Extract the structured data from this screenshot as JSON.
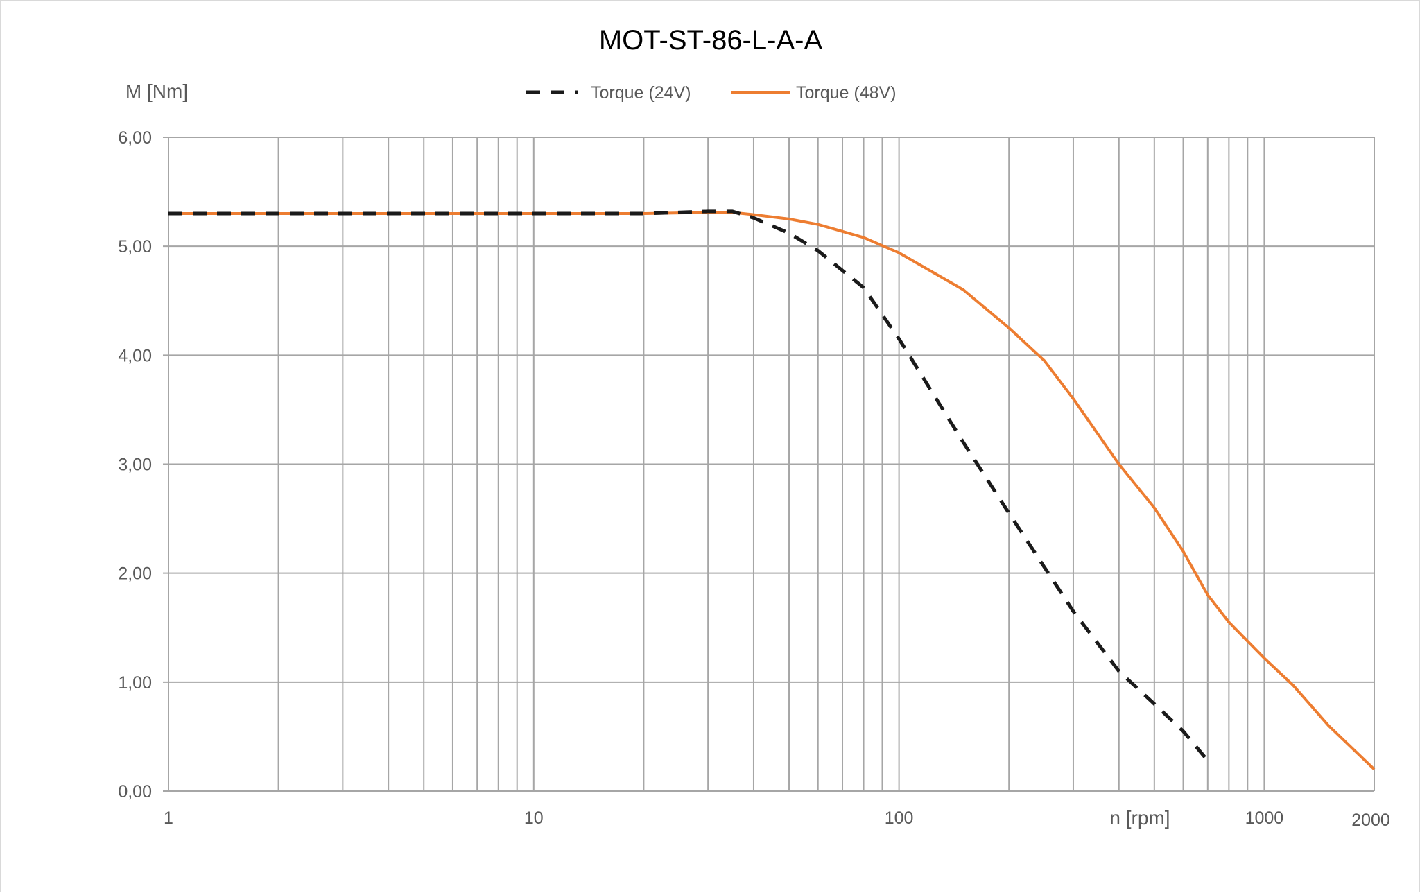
{
  "chart_data": {
    "type": "line",
    "title": "MOT-ST-86-L-A-A",
    "ylabel": "M [Nm]",
    "xlabel": "n [rpm]",
    "x_scale": "log",
    "xlim": [
      1,
      2000
    ],
    "ylim": [
      0,
      6
    ],
    "grid": true,
    "legend_position": "top",
    "x_tick_labels": [
      "1",
      "10",
      "100",
      "1000",
      "2000"
    ],
    "y_tick_labels": [
      "0,00",
      "1,00",
      "2,00",
      "3,00",
      "4,00",
      "5,00",
      "6,00"
    ],
    "series": [
      {
        "name": "Torque (24V)",
        "color": "#1a1a1a",
        "style": "dashed",
        "points": [
          [
            1,
            5.3
          ],
          [
            5,
            5.3
          ],
          [
            10,
            5.3
          ],
          [
            20,
            5.3
          ],
          [
            30,
            5.32
          ],
          [
            35,
            5.32
          ],
          [
            40,
            5.26
          ],
          [
            50,
            5.12
          ],
          [
            60,
            4.96
          ],
          [
            80,
            4.62
          ],
          [
            100,
            4.15
          ],
          [
            150,
            3.2
          ],
          [
            200,
            2.55
          ],
          [
            300,
            1.65
          ],
          [
            400,
            1.1
          ],
          [
            500,
            0.8
          ],
          [
            600,
            0.55
          ],
          [
            700,
            0.28
          ]
        ]
      },
      {
        "name": "Torque (48V)",
        "color": "#ed7d31",
        "style": "solid",
        "points": [
          [
            1,
            5.3
          ],
          [
            10,
            5.3
          ],
          [
            20,
            5.3
          ],
          [
            30,
            5.31
          ],
          [
            35,
            5.31
          ],
          [
            40,
            5.29
          ],
          [
            50,
            5.25
          ],
          [
            60,
            5.2
          ],
          [
            80,
            5.08
          ],
          [
            100,
            4.94
          ],
          [
            150,
            4.6
          ],
          [
            200,
            4.25
          ],
          [
            250,
            3.95
          ],
          [
            300,
            3.6
          ],
          [
            400,
            3.0
          ],
          [
            500,
            2.6
          ],
          [
            600,
            2.2
          ],
          [
            700,
            1.8
          ],
          [
            800,
            1.55
          ],
          [
            1000,
            1.22
          ],
          [
            1200,
            0.97
          ],
          [
            1500,
            0.6
          ],
          [
            2000,
            0.2
          ]
        ]
      }
    ]
  }
}
